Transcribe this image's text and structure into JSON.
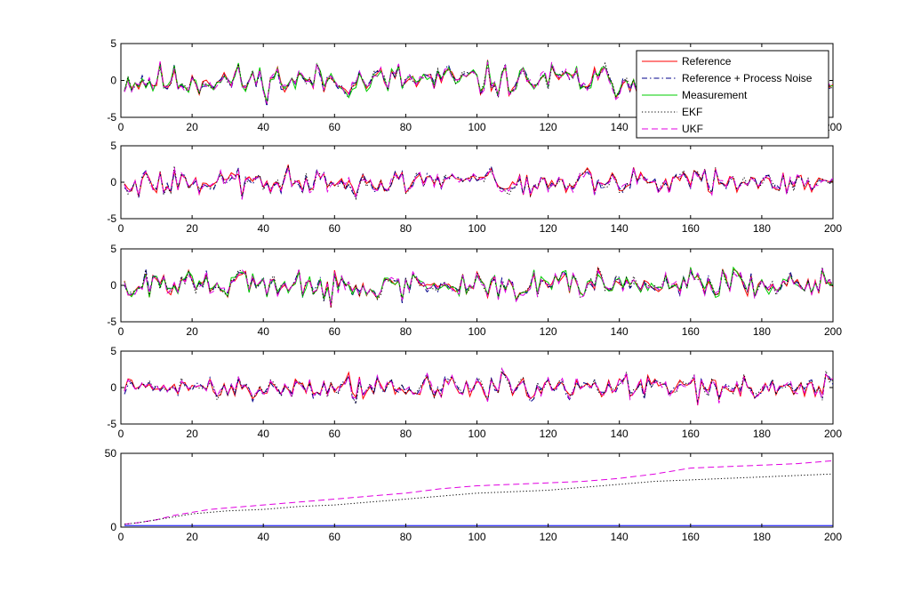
{
  "figure": {
    "background": "#ffffff"
  },
  "legend": {
    "placement": "top-right of first panel",
    "items": [
      {
        "label": "Reference",
        "color": "#ff0000",
        "style": "solid"
      },
      {
        "label": "Reference + Process Noise",
        "color": "#00008b",
        "style": "dash-dot"
      },
      {
        "label": "Measurement",
        "color": "#00cc00",
        "style": "solid"
      },
      {
        "label": "EKF",
        "color": "#000000",
        "style": "dotted"
      },
      {
        "label": "UKF",
        "color": "#e000e0",
        "style": "dashed"
      }
    ]
  },
  "chart_data": [
    {
      "type": "line",
      "panel": 1,
      "xlim": [
        0,
        200
      ],
      "ylim": [
        -5,
        5
      ],
      "xticks": [
        "0",
        "20",
        "40",
        "60",
        "80",
        "100",
        "120",
        "140",
        "160",
        "180",
        "200"
      ],
      "yticks": [
        "5",
        "0",
        "-5"
      ],
      "ytick_values": [
        5,
        0,
        -5
      ],
      "noise_amplitude": 1.6,
      "series": [
        {
          "name": "Reference",
          "color": "#ff0000",
          "style": "solid"
        },
        {
          "name": "Reference + Process Noise",
          "color": "#00008b",
          "style": "dash-dot"
        },
        {
          "name": "Measurement",
          "color": "#00cc00",
          "style": "solid"
        },
        {
          "name": "EKF",
          "color": "#000000",
          "style": "dotted"
        },
        {
          "name": "UKF",
          "color": "#e000e0",
          "style": "dashed"
        }
      ]
    },
    {
      "type": "line",
      "panel": 2,
      "xlim": [
        0,
        200
      ],
      "ylim": [
        -5,
        5
      ],
      "xticks": [
        "0",
        "20",
        "40",
        "60",
        "80",
        "100",
        "120",
        "140",
        "160",
        "180",
        "200"
      ],
      "yticks": [
        "5",
        "0",
        "-5"
      ],
      "ytick_values": [
        5,
        0,
        -5
      ],
      "noise_amplitude": 1.2,
      "series": [
        {
          "name": "Reference",
          "color": "#ff0000",
          "style": "solid"
        },
        {
          "name": "Reference + Process Noise",
          "color": "#00008b",
          "style": "dash-dot"
        },
        {
          "name": "EKF",
          "color": "#000000",
          "style": "dotted"
        },
        {
          "name": "UKF",
          "color": "#e000e0",
          "style": "dashed"
        }
      ]
    },
    {
      "type": "line",
      "panel": 3,
      "xlim": [
        0,
        200
      ],
      "ylim": [
        -5,
        5
      ],
      "xticks": [
        "0",
        "20",
        "40",
        "60",
        "80",
        "100",
        "120",
        "140",
        "160",
        "180",
        "200"
      ],
      "yticks": [
        "5",
        "0",
        "-5"
      ],
      "ytick_values": [
        5,
        0,
        -5
      ],
      "noise_amplitude": 1.4,
      "series": [
        {
          "name": "Reference",
          "color": "#ff0000",
          "style": "solid"
        },
        {
          "name": "Reference + Process Noise",
          "color": "#00008b",
          "style": "dash-dot"
        },
        {
          "name": "Measurement",
          "color": "#00cc00",
          "style": "solid"
        },
        {
          "name": "EKF",
          "color": "#000000",
          "style": "dotted"
        },
        {
          "name": "UKF",
          "color": "#e000e0",
          "style": "dashed"
        }
      ]
    },
    {
      "type": "line",
      "panel": 4,
      "xlim": [
        0,
        200
      ],
      "ylim": [
        -5,
        5
      ],
      "xticks": [
        "0",
        "20",
        "40",
        "60",
        "80",
        "100",
        "120",
        "140",
        "160",
        "180",
        "200"
      ],
      "yticks": [
        "5",
        "0",
        "-5"
      ],
      "ytick_values": [
        5,
        0,
        -5
      ],
      "noise_amplitude": 1.2,
      "series": [
        {
          "name": "Reference",
          "color": "#ff0000",
          "style": "solid"
        },
        {
          "name": "Reference + Process Noise",
          "color": "#00008b",
          "style": "dash-dot"
        },
        {
          "name": "EKF",
          "color": "#000000",
          "style": "dotted"
        },
        {
          "name": "UKF",
          "color": "#e000e0",
          "style": "dashed"
        }
      ]
    },
    {
      "type": "line",
      "panel": 5,
      "xlim": [
        0,
        200
      ],
      "ylim": [
        0,
        50
      ],
      "xticks": [
        "0",
        "20",
        "40",
        "60",
        "80",
        "100",
        "120",
        "140",
        "160",
        "180",
        "200"
      ],
      "yticks": [
        "50",
        "0"
      ],
      "ytick_values": [
        50,
        0
      ],
      "series": [
        {
          "name": "UKF",
          "color": "#e000e0",
          "style": "dashed",
          "x": [
            1,
            5,
            10,
            15,
            20,
            25,
            30,
            40,
            50,
            60,
            70,
            80,
            90,
            100,
            110,
            120,
            130,
            140,
            150,
            160,
            170,
            180,
            190,
            200
          ],
          "y": [
            2,
            3,
            5,
            8,
            10,
            12,
            13,
            15,
            17,
            19,
            21,
            23,
            26,
            28,
            29,
            30,
            31,
            33,
            36,
            40,
            41,
            42,
            43,
            45
          ]
        },
        {
          "name": "EKF",
          "color": "#000000",
          "style": "dotted",
          "x": [
            1,
            5,
            10,
            15,
            20,
            25,
            30,
            40,
            50,
            60,
            70,
            80,
            90,
            100,
            110,
            120,
            130,
            140,
            150,
            160,
            170,
            180,
            190,
            200
          ],
          "y": [
            2,
            3,
            5,
            7,
            9,
            10,
            11,
            12,
            14,
            15,
            17,
            19,
            21,
            23,
            24,
            25,
            27,
            29,
            31,
            32,
            33,
            34,
            35,
            36
          ]
        },
        {
          "name": "Reference",
          "color": "#0000ff",
          "style": "solid",
          "x": [
            1,
            200
          ],
          "y": [
            1,
            1
          ]
        }
      ]
    }
  ]
}
